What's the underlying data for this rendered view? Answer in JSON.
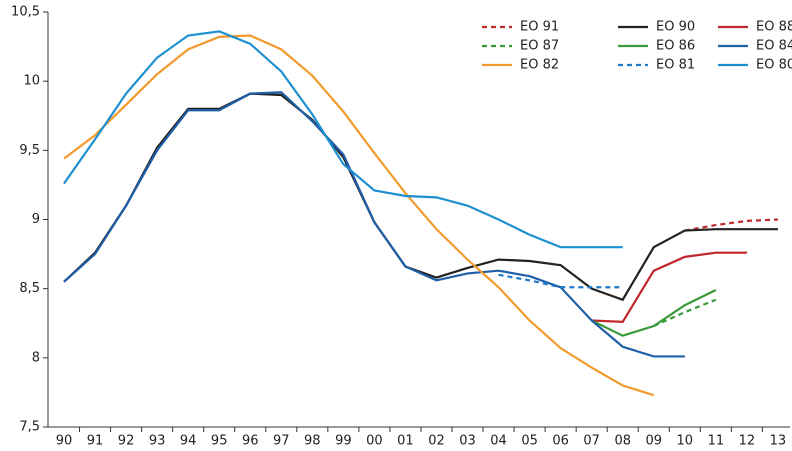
{
  "chart_data": {
    "type": "line",
    "categories": [
      "90",
      "91",
      "92",
      "93",
      "94",
      "95",
      "96",
      "97",
      "98",
      "99",
      "00",
      "01",
      "02",
      "03",
      "04",
      "05",
      "06",
      "07",
      "08",
      "09",
      "10",
      "11",
      "12",
      "13"
    ],
    "ylim": [
      7.5,
      10.5
    ],
    "yticks": [
      {
        "value": 7.5,
        "label": "7,5"
      },
      8,
      {
        "value": 8.5,
        "label": "8,5"
      },
      9,
      {
        "value": 9.5,
        "label": "9,5"
      },
      10,
      {
        "value": 10.5,
        "label": "10,5"
      }
    ],
    "grid": false,
    "legend": "top-right",
    "series": [
      {
        "name": "EO 91",
        "color": "#c0272d",
        "dashed": true,
        "values": [
          null,
          null,
          null,
          null,
          null,
          null,
          null,
          null,
          null,
          null,
          null,
          null,
          null,
          null,
          null,
          null,
          null,
          null,
          null,
          null,
          8.92,
          8.96,
          8.99,
          9.0
        ]
      },
      {
        "name": "EO 90",
        "color": "#222222",
        "dashed": false,
        "values": [
          8.55,
          8.76,
          9.1,
          9.52,
          9.8,
          9.8,
          9.91,
          9.9,
          9.72,
          9.45,
          8.98,
          8.66,
          8.58,
          8.65,
          8.71,
          8.7,
          8.67,
          8.5,
          8.42,
          8.8,
          8.92,
          8.93,
          8.93,
          8.93
        ]
      },
      {
        "name": "EO 88",
        "color": "#c0272d",
        "dashed": false,
        "values": [
          null,
          null,
          null,
          null,
          null,
          null,
          null,
          null,
          null,
          null,
          null,
          null,
          null,
          null,
          null,
          null,
          null,
          8.27,
          8.26,
          8.63,
          8.73,
          8.76,
          8.76,
          null
        ]
      },
      {
        "name": "EO 87",
        "color": "#3a9a3a",
        "dashed": true,
        "values": [
          null,
          null,
          null,
          null,
          null,
          null,
          null,
          null,
          null,
          null,
          null,
          null,
          null,
          null,
          null,
          null,
          null,
          null,
          null,
          8.23,
          8.33,
          8.42,
          null,
          null
        ]
      },
      {
        "name": "EO 86",
        "color": "#3a9a3a",
        "dashed": false,
        "values": [
          null,
          null,
          null,
          null,
          null,
          null,
          null,
          null,
          null,
          null,
          null,
          null,
          null,
          null,
          null,
          null,
          null,
          8.27,
          8.16,
          8.23,
          8.38,
          8.49,
          null,
          null
        ]
      },
      {
        "name": "EO 84",
        "color": "#1f5fa8",
        "dashed": false,
        "values": [
          8.55,
          8.75,
          9.1,
          9.5,
          9.79,
          9.79,
          9.91,
          9.92,
          9.71,
          9.47,
          8.98,
          8.66,
          8.56,
          8.61,
          8.63,
          8.59,
          8.51,
          8.27,
          8.08,
          8.01,
          8.01,
          null,
          null,
          null
        ]
      },
      {
        "name": "EO 82",
        "color": "#f39a2c",
        "dashed": false,
        "values": [
          9.44,
          9.61,
          9.83,
          10.05,
          10.23,
          10.32,
          10.33,
          10.23,
          10.04,
          9.78,
          9.48,
          9.19,
          8.93,
          8.71,
          8.51,
          8.27,
          8.07,
          7.93,
          7.8,
          7.73,
          null,
          null,
          null,
          null
        ]
      },
      {
        "name": "EO 81",
        "color": "#1f78c8",
        "dashed": true,
        "values": [
          null,
          null,
          null,
          null,
          null,
          null,
          null,
          null,
          null,
          null,
          null,
          null,
          null,
          null,
          8.6,
          8.56,
          8.51,
          8.51,
          8.51,
          null,
          null,
          null,
          null,
          null
        ]
      },
      {
        "name": "EO 80",
        "color": "#1e90d0",
        "dashed": false,
        "values": [
          9.26,
          9.58,
          9.91,
          10.17,
          10.33,
          10.36,
          10.27,
          10.07,
          9.76,
          9.4,
          9.21,
          9.17,
          9.16,
          9.1,
          9.0,
          8.89,
          8.8,
          8.8,
          8.8,
          null,
          null,
          null,
          null,
          null
        ]
      }
    ]
  }
}
